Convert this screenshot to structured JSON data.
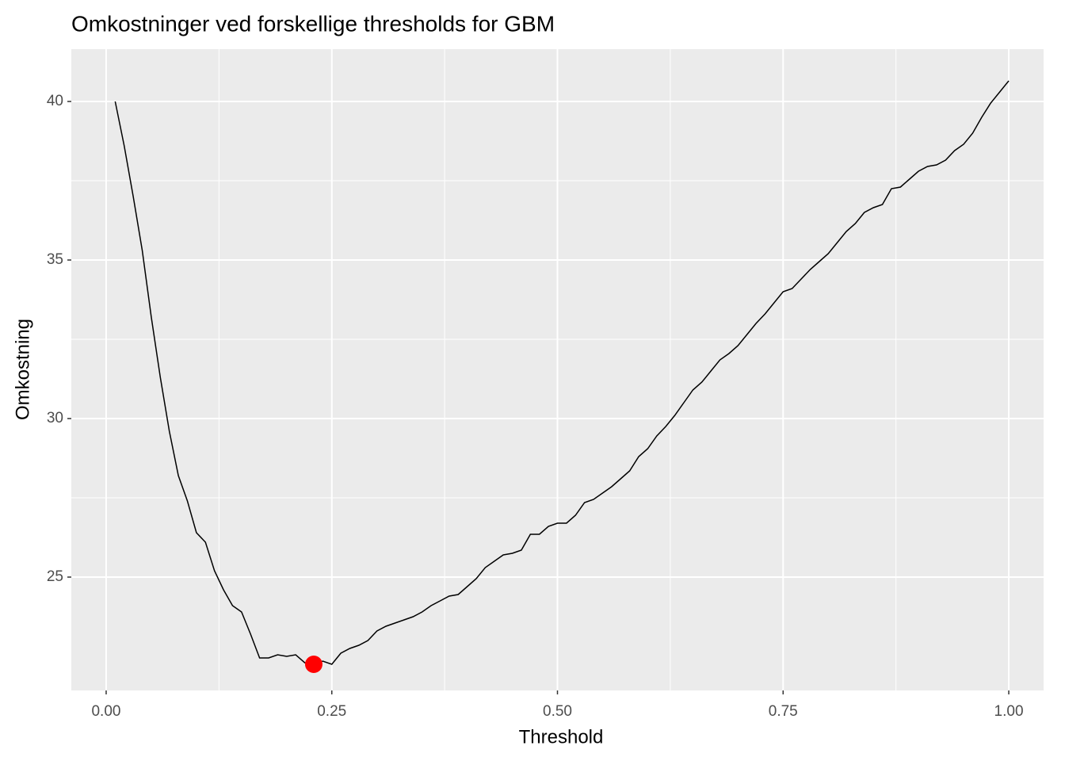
{
  "chart_data": {
    "type": "line",
    "title": "Omkostninger ved forskellige thresholds for GBM",
    "x_label": "Threshold",
    "y_label": "Omkostning",
    "x": [
      0.01,
      0.02,
      0.03,
      0.04,
      0.05,
      0.06,
      0.07,
      0.08,
      0.09,
      0.1,
      0.11,
      0.12,
      0.13,
      0.14,
      0.15,
      0.16,
      0.17,
      0.18,
      0.19,
      0.2,
      0.21,
      0.22,
      0.23,
      0.24,
      0.25,
      0.26,
      0.27,
      0.28,
      0.29,
      0.3,
      0.31,
      0.32,
      0.33,
      0.34,
      0.35,
      0.36,
      0.37,
      0.38,
      0.39,
      0.4,
      0.41,
      0.42,
      0.43,
      0.44,
      0.45,
      0.46,
      0.47,
      0.48,
      0.49,
      0.5,
      0.51,
      0.52,
      0.53,
      0.54,
      0.55,
      0.56,
      0.57,
      0.58,
      0.59,
      0.6,
      0.61,
      0.62,
      0.63,
      0.64,
      0.65,
      0.66,
      0.67,
      0.68,
      0.69,
      0.7,
      0.71,
      0.72,
      0.73,
      0.74,
      0.75,
      0.76,
      0.77,
      0.78,
      0.79,
      0.8,
      0.81,
      0.82,
      0.83,
      0.84,
      0.85,
      0.86,
      0.87,
      0.88,
      0.89,
      0.9,
      0.91,
      0.92,
      0.93,
      0.94,
      0.95,
      0.96,
      0.97,
      0.98,
      0.99,
      1.0
    ],
    "series": [
      {
        "name": "Omkostning",
        "color": "#000000",
        "values": [
          40.0,
          38.6,
          37.0,
          35.3,
          33.2,
          31.3,
          29.6,
          28.2,
          27.4,
          26.4,
          26.1,
          25.2,
          24.6,
          24.1,
          23.9,
          23.2,
          22.45,
          22.45,
          22.55,
          22.5,
          22.55,
          22.3,
          22.25,
          22.35,
          22.25,
          22.6,
          22.75,
          22.85,
          23.0,
          23.3,
          23.45,
          23.55,
          23.65,
          23.75,
          23.9,
          24.1,
          24.25,
          24.4,
          24.45,
          24.7,
          24.95,
          25.3,
          25.5,
          25.7,
          25.75,
          25.85,
          26.35,
          26.35,
          26.6,
          26.7,
          26.7,
          26.95,
          27.35,
          27.45,
          27.65,
          27.85,
          28.1,
          28.35,
          28.8,
          29.05,
          29.45,
          29.75,
          30.1,
          30.5,
          30.9,
          31.15,
          31.5,
          31.85,
          32.05,
          32.3,
          32.65,
          33.0,
          33.3,
          33.65,
          34.0,
          34.1,
          34.4,
          34.7,
          34.95,
          35.2,
          35.55,
          35.9,
          36.15,
          36.5,
          36.65,
          36.75,
          37.25,
          37.3,
          37.55,
          37.8,
          37.95,
          38.0,
          38.15,
          38.45,
          38.65,
          39.0,
          39.5,
          39.95,
          40.3,
          40.65
        ]
      }
    ],
    "highlight": {
      "x": 0.23,
      "y": 22.25,
      "color": "#ff0000"
    },
    "xlim": [
      -0.0386,
      1.0386
    ],
    "ylim": [
      21.425,
      41.65
    ],
    "xticks": [
      {
        "value": 0,
        "label": "0.00"
      },
      {
        "value": 0.25,
        "label": "0.25"
      },
      {
        "value": 0.5,
        "label": "0.50"
      },
      {
        "value": 0.75,
        "label": "0.75"
      },
      {
        "value": 1,
        "label": "1.00"
      }
    ],
    "yticks": [
      25,
      30,
      35,
      40
    ],
    "grid": true
  }
}
